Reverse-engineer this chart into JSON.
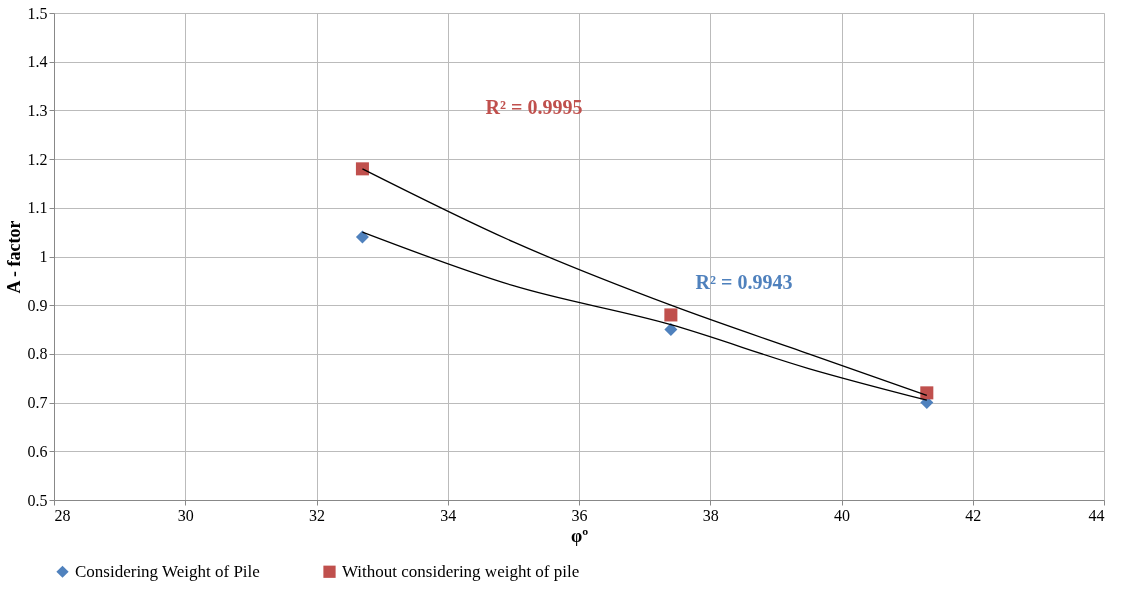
{
  "chart_data": {
    "type": "scatter",
    "xlabel": "φº",
    "ylabel": "A - factor",
    "x": [
      32.7,
      37.4,
      41.3
    ],
    "series": [
      {
        "name": "Considering Weight of Pile",
        "color": "#4f81bd",
        "marker": "diamond",
        "values": [
          1.04,
          0.85,
          0.7
        ]
      },
      {
        "name": "Without considering weight of pile",
        "color": "#c0504d",
        "marker": "square",
        "values": [
          1.18,
          0.88,
          0.72
        ]
      },
      {
        "type": "line",
        "color": "#000000",
        "marker": "none",
        "x": [
          32.7,
          35.0,
          37.4,
          39.5,
          41.3
        ],
        "values": [
          1.05,
          0.94,
          0.86,
          0.77,
          0.705
        ]
      },
      {
        "type": "line",
        "color": "#000000",
        "marker": "none",
        "x": [
          32.7,
          35.0,
          37.4,
          39.5,
          41.3
        ],
        "values": [
          1.18,
          1.03,
          0.9,
          0.8,
          0.715
        ]
      }
    ],
    "annotations": [
      "R² = 0.9995",
      "R² = 0.9943"
    ],
    "xlim": [
      28,
      44
    ],
    "xticks": [
      28,
      30,
      32,
      34,
      36,
      38,
      40,
      42,
      44
    ],
    "ylim": [
      0.5,
      1.5
    ],
    "yticks": [
      0.5,
      0.6,
      0.7,
      0.8,
      0.9,
      1,
      1.1,
      1.2,
      1.3,
      1.4,
      1.5
    ],
    "grid": true,
    "legend": "bottom"
  }
}
